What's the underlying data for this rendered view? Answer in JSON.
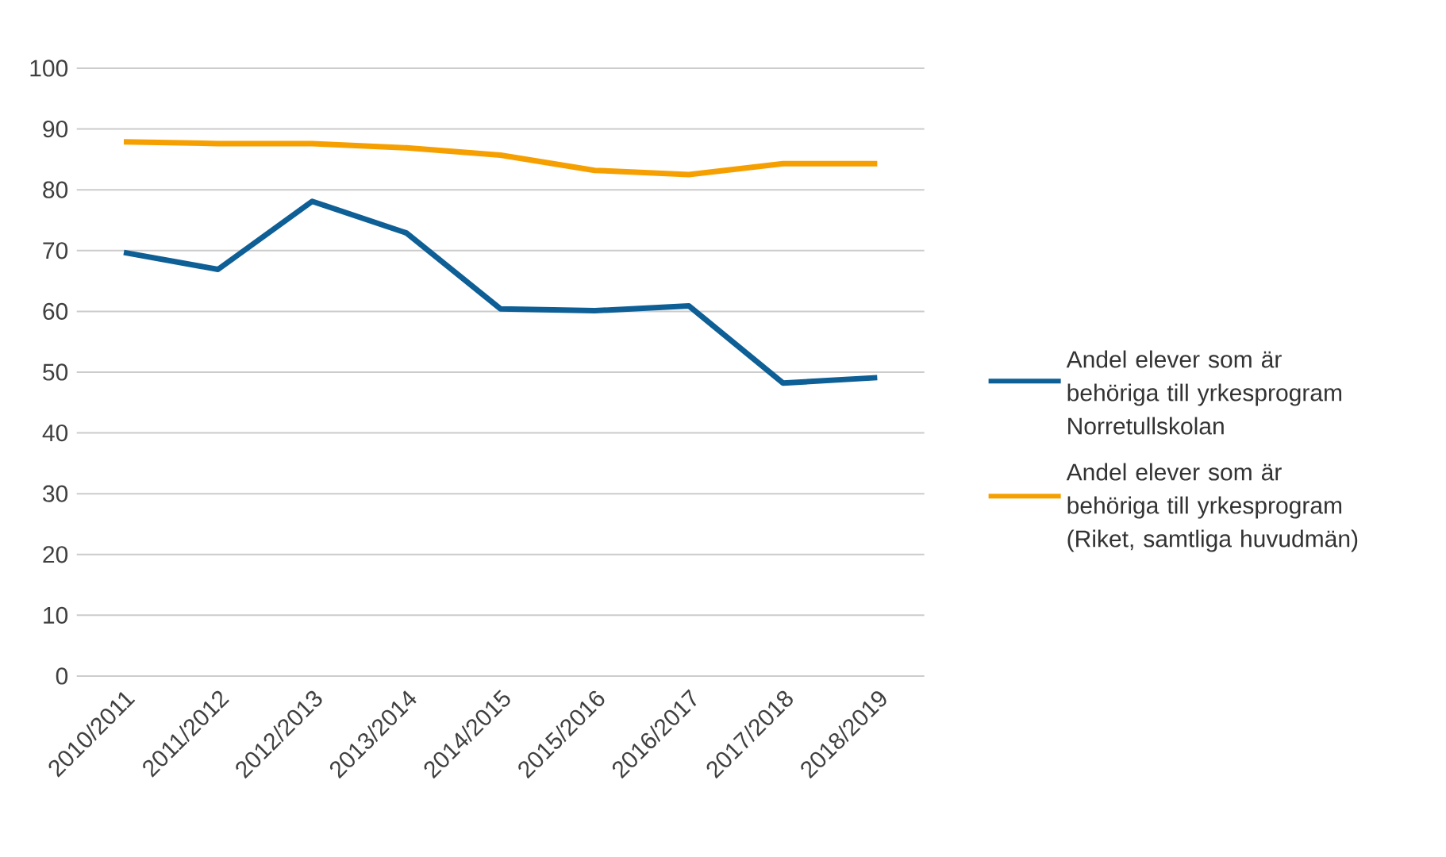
{
  "chart_data": {
    "type": "line",
    "categories": [
      "2010/2011",
      "2011/2012",
      "2012/2013",
      "2013/2014",
      "2014/2015",
      "2015/2016",
      "2016/2017",
      "2017/2018",
      "2018/2019"
    ],
    "series": [
      {
        "name": "Andel elever som är behöriga till yrkesprogram Norretullskolan",
        "color": "#0e5f96",
        "values": [
          69.7,
          66.9,
          78.1,
          72.9,
          60.4,
          60.1,
          60.9,
          48.2,
          49.1
        ]
      },
      {
        "name": "Andel elever som är behöriga till yrkesprogram (Riket, samtliga huvudmän)",
        "color": "#f5a000",
        "values": [
          87.9,
          87.6,
          87.6,
          86.9,
          85.7,
          83.2,
          82.5,
          84.3,
          84.3
        ]
      }
    ],
    "ylim": [
      0,
      100
    ],
    "yticks": [
      0,
      10,
      20,
      30,
      40,
      50,
      60,
      70,
      80,
      90,
      100
    ],
    "grid": "y",
    "legend": "right",
    "marker": "none",
    "line_style": "solid"
  }
}
